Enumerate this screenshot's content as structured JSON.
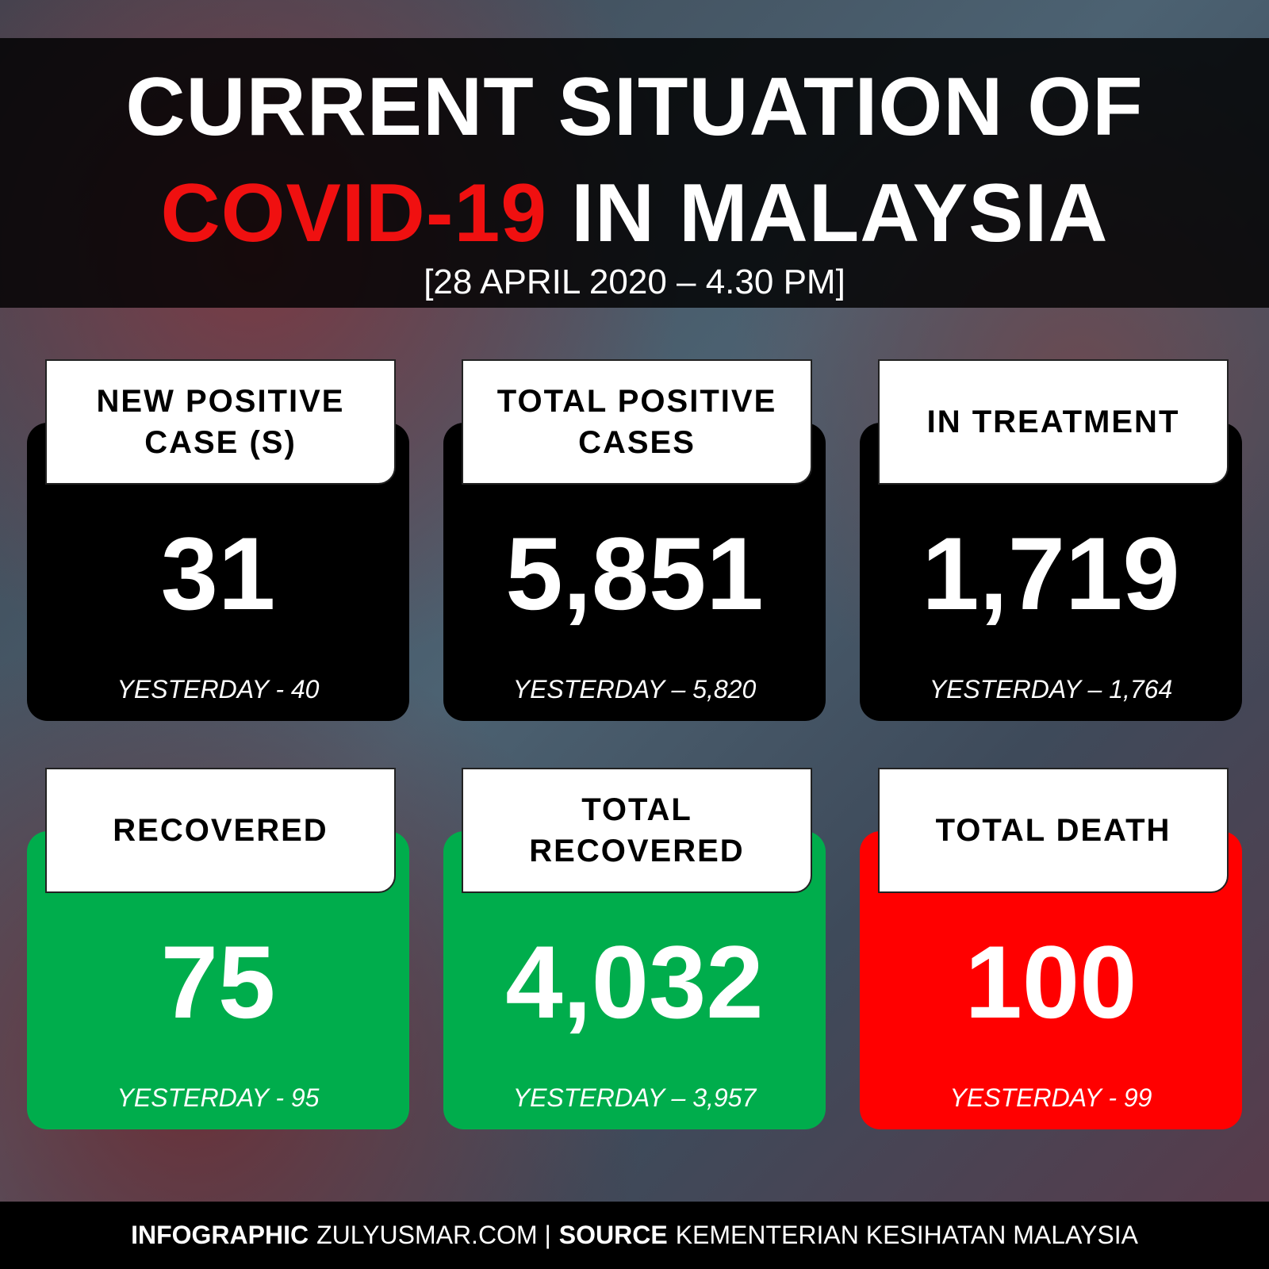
{
  "header": {
    "title_line1": "CURRENT SITUATION OF",
    "title_highlight": "COVID-19",
    "title_line2_rest": "IN MALAYSIA",
    "date": "[28 APRIL 2020 – 4.30 PM]"
  },
  "cards": [
    {
      "label": "NEW POSITIVE CASE (S)",
      "value": "31",
      "yesterday": "YESTERDAY - 40",
      "color": "black"
    },
    {
      "label": "TOTAL POSITIVE CASES",
      "value": "5,851",
      "yesterday": "YESTERDAY – 5,820",
      "color": "black"
    },
    {
      "label": "IN TREATMENT",
      "value": "1,719",
      "yesterday": "YESTERDAY – 1,764",
      "color": "black"
    },
    {
      "label": "RECOVERED",
      "value": "75",
      "yesterday": "YESTERDAY - 95",
      "color": "green"
    },
    {
      "label": "TOTAL RECOVERED",
      "value": "4,032",
      "yesterday": "YESTERDAY – 3,957",
      "color": "green"
    },
    {
      "label": "TOTAL DEATH",
      "value": "100",
      "yesterday": "YESTERDAY - 99",
      "color": "red"
    }
  ],
  "footer": {
    "infographic_label": "INFOGRAPHIC",
    "site": "ZULYUSMAR.COM |",
    "source_label": "SOURCE",
    "source": "KEMENTERIAN KESIHATAN MALAYSIA"
  }
}
